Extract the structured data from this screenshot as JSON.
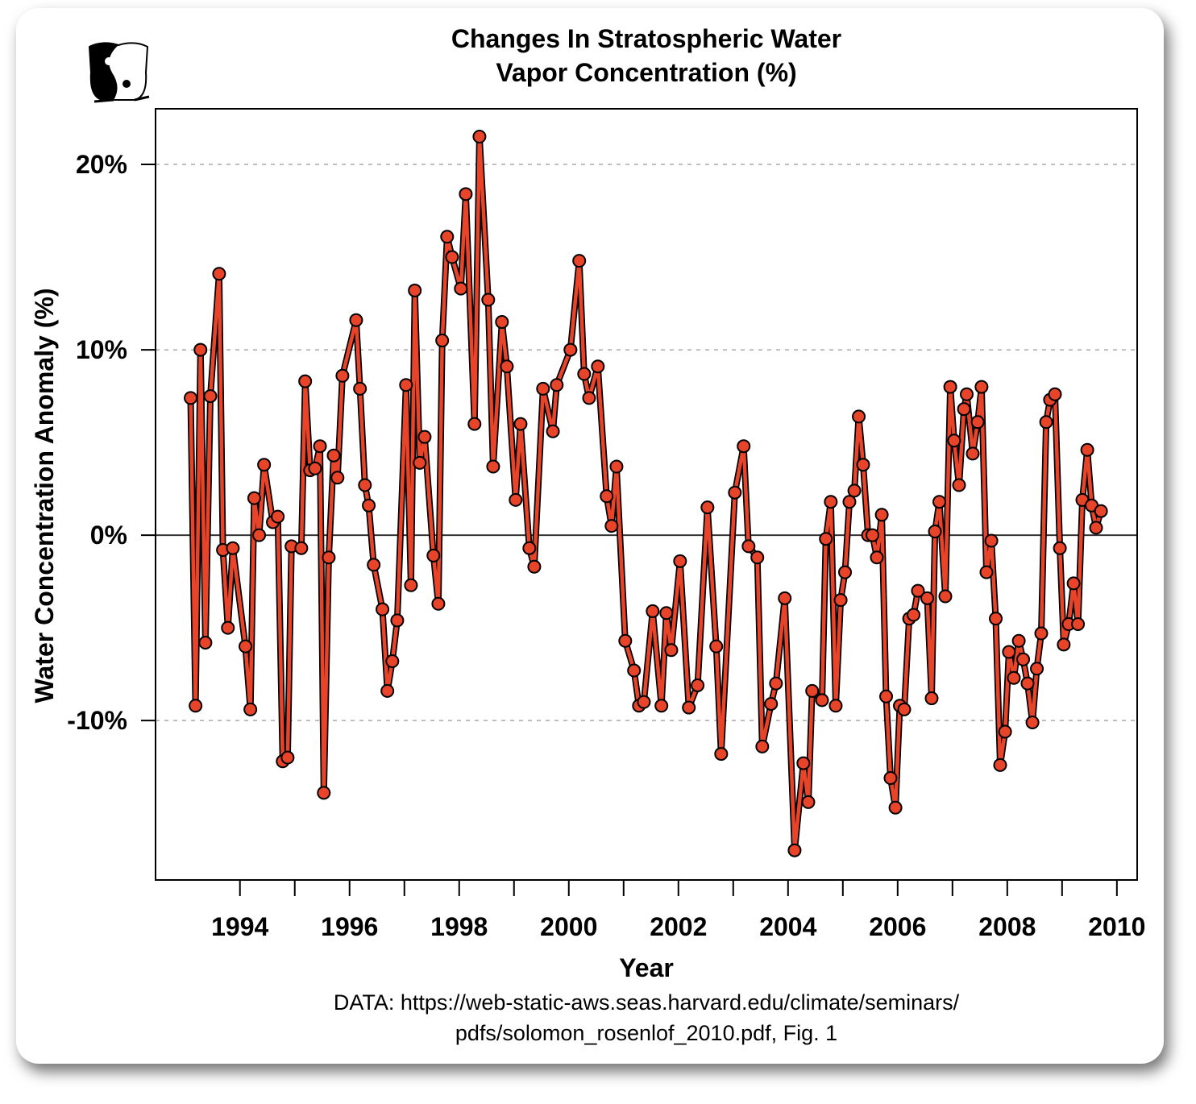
{
  "chart_data": {
    "type": "line",
    "title": [
      "Changes In Stratospheric Water",
      "Vapor Concentration (%)"
    ],
    "xlabel": "Year",
    "ylabel": "Water Concentration Anomaly (%)",
    "xlim": [
      1992.46,
      2010.37
    ],
    "ylim": [
      -18.6,
      23.0
    ],
    "xticks": [
      1994,
      1995,
      1996,
      1997,
      1998,
      1999,
      2000,
      2001,
      2002,
      2003,
      2004,
      2005,
      2006,
      2007,
      2008,
      2009,
      2010
    ],
    "xtick_labels": [
      "1994",
      "1996",
      "1998",
      "2000",
      "2002",
      "2004",
      "2006",
      "2008",
      "2010"
    ],
    "xtick_label_values": [
      1994,
      1996,
      1998,
      2000,
      2002,
      2004,
      2006,
      2008,
      2010
    ],
    "yticks": [
      20,
      10,
      0,
      -10
    ],
    "ytick_labels": [
      "20%",
      "10%",
      "0%",
      "-10%"
    ],
    "grid": "horizontal dashed at y ticks",
    "zero_line": true,
    "colors": {
      "line": "#e8442a",
      "outline": "#000000",
      "grid": "#aaaaaa"
    },
    "x": [
      1993.1,
      1993.19,
      1993.28,
      1993.37,
      1993.46,
      1993.62,
      1993.69,
      1993.78,
      1993.87,
      1994.1,
      1994.19,
      1994.26,
      1994.35,
      1994.44,
      1994.6,
      1994.69,
      1994.78,
      1994.87,
      1994.94,
      1995.12,
      1995.19,
      1995.28,
      1995.37,
      1995.46,
      1995.53,
      1995.62,
      1995.71,
      1995.78,
      1995.87,
      1996.12,
      1996.19,
      1996.28,
      1996.35,
      1996.44,
      1996.6,
      1996.69,
      1996.78,
      1996.87,
      1997.03,
      1997.12,
      1997.19,
      1997.28,
      1997.37,
      1997.53,
      1997.62,
      1997.69,
      1997.78,
      1997.87,
      1998.03,
      1998.12,
      1998.28,
      1998.37,
      1998.53,
      1998.62,
      1998.78,
      1998.87,
      1999.03,
      1999.12,
      1999.28,
      1999.37,
      1999.53,
      1999.71,
      1999.78,
      2000.03,
      2000.19,
      2000.28,
      2000.37,
      2000.53,
      2000.69,
      2000.78,
      2000.87,
      2001.03,
      2001.19,
      2001.28,
      2001.37,
      2001.53,
      2001.69,
      2001.78,
      2001.87,
      2002.03,
      2002.19,
      2002.35,
      2002.53,
      2002.69,
      2002.78,
      2003.03,
      2003.19,
      2003.28,
      2003.44,
      2003.53,
      2003.69,
      2003.78,
      2003.94,
      2004.12,
      2004.28,
      2004.37,
      2004.44,
      2004.62,
      2004.69,
      2004.78,
      2004.87,
      2004.96,
      2005.04,
      2005.12,
      2005.21,
      2005.29,
      2005.37,
      2005.46,
      2005.54,
      2005.62,
      2005.71,
      2005.79,
      2005.87,
      2005.96,
      2006.04,
      2006.12,
      2006.21,
      2006.29,
      2006.37,
      2006.54,
      2006.62,
      2006.68,
      2006.76,
      2006.87,
      2006.96,
      2007.03,
      2007.12,
      2007.21,
      2007.26,
      2007.37,
      2007.46,
      2007.53,
      2007.62,
      2007.71,
      2007.79,
      2007.87,
      2007.96,
      2008.03,
      2008.12,
      2008.21,
      2008.29,
      2008.37,
      2008.46,
      2008.54,
      2008.62,
      2008.71,
      2008.78,
      2008.87,
      2008.96,
      2009.03,
      2009.12,
      2009.21,
      2009.29,
      2009.37,
      2009.46,
      2009.54,
      2009.62,
      2009.71
    ],
    "y": [
      7.4,
      -9.2,
      10.0,
      -5.8,
      7.5,
      14.1,
      -0.8,
      -5.0,
      -0.7,
      -6.0,
      -9.4,
      2.0,
      0.0,
      3.8,
      0.7,
      1.0,
      -12.2,
      -12.0,
      -0.6,
      -0.7,
      8.3,
      3.5,
      3.6,
      4.8,
      -13.9,
      -1.2,
      4.3,
      3.1,
      8.6,
      11.6,
      7.9,
      2.7,
      1.6,
      -1.6,
      -4.0,
      -8.4,
      -6.8,
      -4.6,
      8.1,
      -2.7,
      13.2,
      3.9,
      5.3,
      -1.1,
      -3.7,
      10.5,
      16.1,
      15.0,
      13.3,
      18.4,
      6.0,
      21.5,
      12.7,
      3.7,
      11.5,
      9.1,
      1.9,
      6.0,
      -0.7,
      -1.7,
      7.9,
      5.6,
      8.1,
      10.0,
      14.8,
      8.7,
      7.4,
      9.1,
      2.1,
      0.5,
      3.7,
      -5.7,
      -7.3,
      -9.2,
      -9.0,
      -4.1,
      -9.2,
      -4.2,
      -6.2,
      -1.4,
      -9.3,
      -8.1,
      1.5,
      -6.0,
      -11.8,
      2.3,
      4.8,
      -0.6,
      -1.2,
      -11.4,
      -9.1,
      -8.0,
      -3.4,
      -17.0,
      -12.3,
      -14.4,
      -8.4,
      -8.9,
      -0.2,
      1.8,
      -9.2,
      -3.5,
      -2.0,
      1.8,
      2.4,
      6.4,
      3.8,
      0.0,
      0.0,
      -1.2,
      1.1,
      -8.7,
      -13.1,
      -14.7,
      -9.2,
      -9.4,
      -4.5,
      -4.3,
      -3.0,
      -3.4,
      -8.8,
      0.2,
      1.8,
      -3.3,
      8.0,
      5.1,
      2.7,
      6.8,
      7.6,
      4.4,
      6.1,
      8.0,
      -2.0,
      -0.3,
      -4.5,
      -12.4,
      -10.6,
      -6.3,
      -7.7,
      -5.7,
      -6.7,
      -8.0,
      -10.1,
      -7.2,
      -5.3,
      6.1,
      7.3,
      7.6,
      -0.7,
      -5.9,
      -4.8,
      -2.6,
      -4.8,
      1.9,
      4.6,
      1.6,
      0.4,
      1.3
    ]
  },
  "footer": {
    "line1": "DATA: https://web-static-aws.seas.harvard.edu/climate/seminars/",
    "line2": "pdfs/solomon_rosenlof_2010.pdf, Fig. 1"
  },
  "logo": {
    "icon": "yin-yang-cat-logo"
  }
}
